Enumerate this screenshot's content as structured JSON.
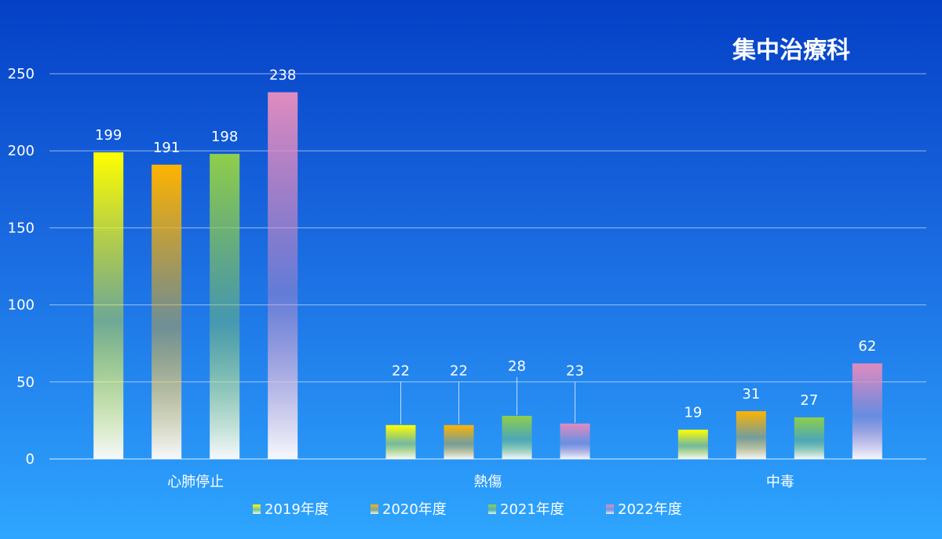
{
  "chart_data": {
    "type": "bar",
    "title": "集中治療科",
    "xlabel": "",
    "ylabel": "",
    "categories": [
      "心肺停止",
      "熱傷",
      "中毒"
    ],
    "series": [
      {
        "name": "2019年度",
        "values": [
          199,
          22,
          19
        ],
        "color": "#ffff00"
      },
      {
        "name": "2020年度",
        "values": [
          191,
          22,
          31
        ],
        "color": "#ffb400"
      },
      {
        "name": "2021年度",
        "values": [
          198,
          28,
          27
        ],
        "color": "#8fcf4a"
      },
      {
        "name": "2022年度",
        "values": [
          238,
          23,
          62
        ],
        "color": "#e08cc0"
      }
    ],
    "ylim": [
      0,
      250
    ],
    "yticks": [
      0,
      50,
      100,
      150,
      200,
      250
    ],
    "grid": true,
    "legend": "bottom"
  }
}
